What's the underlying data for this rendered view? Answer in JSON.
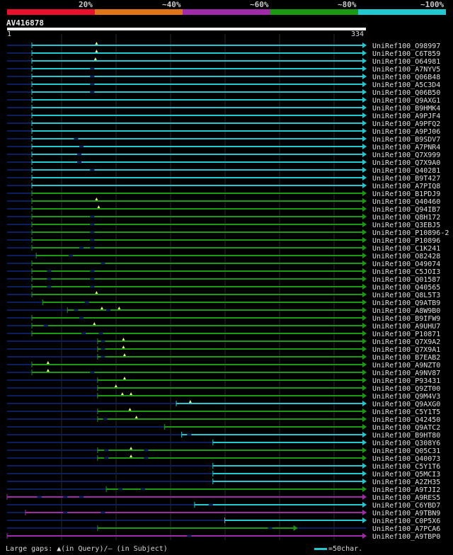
{
  "legend": {
    "colors": [
      "#e8102c",
      "#e07418",
      "#a02aa8",
      "#1a9a10",
      "#22c8d0"
    ],
    "labels": [
      "20%",
      "~40%",
      "~60%",
      "~80%",
      "~100%"
    ]
  },
  "query": {
    "name": "AV416878",
    "start": "1",
    "end": "334"
  },
  "footer": {
    "gaps_text": "Large gaps: ▲(in Query)/— (in Subject)",
    "scale_text": "=50char."
  },
  "colors": {
    "cyan": "#22c8d0",
    "green": "#1a9a10",
    "purple": "#a02aa8",
    "navy": "#0c1e5e",
    "grid": "#2a2a2a",
    "marker": "#f0f080"
  },
  "chart_data": {
    "type": "alignment",
    "query_length": 334,
    "hits": [
      {
        "name": "UniRef100_O98997",
        "start": 24,
        "end": 334,
        "color": "cyan",
        "q_gaps": [
          84
        ],
        "s_gaps": []
      },
      {
        "name": "UniRef100_C6T859",
        "start": 24,
        "end": 334,
        "color": "cyan",
        "q_gaps": [
          84
        ],
        "s_gaps": []
      },
      {
        "name": "UniRef100_O64981",
        "start": 24,
        "end": 334,
        "color": "cyan",
        "q_gaps": [
          83
        ],
        "s_gaps": []
      },
      {
        "name": "UniRef100_A7NYV5",
        "start": 24,
        "end": 334,
        "color": "cyan",
        "q_gaps": [],
        "s_gaps": [
          80
        ]
      },
      {
        "name": "UniRef100_Q06B48",
        "start": 24,
        "end": 334,
        "color": "cyan",
        "q_gaps": [],
        "s_gaps": [
          80
        ]
      },
      {
        "name": "UniRef100_A5C3D4",
        "start": 24,
        "end": 334,
        "color": "cyan",
        "q_gaps": [],
        "s_gaps": [
          80
        ]
      },
      {
        "name": "UniRef100_Q06B50",
        "start": 24,
        "end": 334,
        "color": "cyan",
        "q_gaps": [],
        "s_gaps": [
          80
        ]
      },
      {
        "name": "UniRef100_Q9AXG1",
        "start": 24,
        "end": 334,
        "color": "cyan",
        "q_gaps": [],
        "s_gaps": []
      },
      {
        "name": "UniRef100_B9HMK4",
        "start": 24,
        "end": 334,
        "color": "cyan",
        "q_gaps": [],
        "s_gaps": []
      },
      {
        "name": "UniRef100_A9PJF4",
        "start": 24,
        "end": 334,
        "color": "cyan",
        "q_gaps": [],
        "s_gaps": []
      },
      {
        "name": "UniRef100_A9PFQ2",
        "start": 24,
        "end": 334,
        "color": "cyan",
        "q_gaps": [],
        "s_gaps": []
      },
      {
        "name": "UniRef100_A9PJ06",
        "start": 24,
        "end": 334,
        "color": "cyan",
        "q_gaps": [],
        "s_gaps": []
      },
      {
        "name": "UniRef100_B9SDV7",
        "start": 24,
        "end": 334,
        "color": "cyan",
        "q_gaps": [],
        "s_gaps": [
          65
        ]
      },
      {
        "name": "UniRef100_A7PNR4",
        "start": 24,
        "end": 334,
        "color": "cyan",
        "q_gaps": [],
        "s_gaps": [
          70
        ]
      },
      {
        "name": "UniRef100_Q7X999",
        "start": 24,
        "end": 334,
        "color": "cyan",
        "q_gaps": [],
        "s_gaps": [
          68
        ]
      },
      {
        "name": "UniRef100_Q7X9A0",
        "start": 24,
        "end": 334,
        "color": "cyan",
        "q_gaps": [],
        "s_gaps": [
          68
        ]
      },
      {
        "name": "UniRef100_Q40281",
        "start": 24,
        "end": 334,
        "color": "cyan",
        "q_gaps": [],
        "s_gaps": [
          80
        ]
      },
      {
        "name": "UniRef100_B9T427",
        "start": 24,
        "end": 334,
        "color": "cyan",
        "q_gaps": [],
        "s_gaps": []
      },
      {
        "name": "UniRef100_A7PIQ8",
        "start": 24,
        "end": 334,
        "color": "cyan",
        "q_gaps": [],
        "s_gaps": []
      },
      {
        "name": "UniRef100_B1PDJ9",
        "start": 24,
        "end": 334,
        "color": "green",
        "q_gaps": [],
        "s_gaps": []
      },
      {
        "name": "UniRef100_Q40460",
        "start": 24,
        "end": 334,
        "color": "green",
        "q_gaps": [
          84
        ],
        "s_gaps": []
      },
      {
        "name": "UniRef100_Q94IB7",
        "start": 24,
        "end": 334,
        "color": "green",
        "q_gaps": [
          86
        ],
        "s_gaps": []
      },
      {
        "name": "UniRef100_Q8H172",
        "start": 24,
        "end": 334,
        "color": "green",
        "q_gaps": [],
        "s_gaps": [
          80
        ]
      },
      {
        "name": "UniRef100_Q3EBJ5",
        "start": 24,
        "end": 334,
        "color": "green",
        "q_gaps": [],
        "s_gaps": [
          80
        ]
      },
      {
        "name": "UniRef100_P10896-2",
        "start": 24,
        "end": 334,
        "color": "green",
        "q_gaps": [],
        "s_gaps": [
          80
        ]
      },
      {
        "name": "UniRef100_P10896",
        "start": 24,
        "end": 334,
        "color": "green",
        "q_gaps": [],
        "s_gaps": [
          80
        ]
      },
      {
        "name": "UniRef100_C1K241",
        "start": 24,
        "end": 334,
        "color": "green",
        "q_gaps": [],
        "s_gaps": [
          70,
          80
        ]
      },
      {
        "name": "UniRef100_O82428",
        "start": 28,
        "end": 334,
        "color": "green",
        "q_gaps": [],
        "s_gaps": [
          60
        ]
      },
      {
        "name": "UniRef100_O49074",
        "start": 24,
        "end": 334,
        "color": "green",
        "q_gaps": [],
        "s_gaps": [
          90
        ]
      },
      {
        "name": "UniRef100_C5JOI3",
        "start": 24,
        "end": 334,
        "color": "green",
        "q_gaps": [],
        "s_gaps": [
          40,
          80
        ]
      },
      {
        "name": "UniRef100_Q01587",
        "start": 24,
        "end": 334,
        "color": "green",
        "q_gaps": [],
        "s_gaps": [
          40,
          80
        ]
      },
      {
        "name": "UniRef100_Q40565",
        "start": 24,
        "end": 334,
        "color": "green",
        "q_gaps": [],
        "s_gaps": [
          40,
          80
        ]
      },
      {
        "name": "UniRef100_Q8L5T3",
        "start": 24,
        "end": 334,
        "color": "green",
        "q_gaps": [
          84
        ],
        "s_gaps": []
      },
      {
        "name": "UniRef100_Q9ATB9",
        "start": 34,
        "end": 334,
        "color": "green",
        "q_gaps": [],
        "s_gaps": [
          75
        ]
      },
      {
        "name": "UniRef100_A8W9B0",
        "start": 57,
        "end": 334,
        "color": "green",
        "q_gaps": [
          89,
          105
        ],
        "s_gaps": [
          65,
          95
        ]
      },
      {
        "name": "UniRef100_B9IFW9",
        "start": 24,
        "end": 334,
        "color": "green",
        "q_gaps": [],
        "s_gaps": [
          70
        ]
      },
      {
        "name": "UniRef100_A9UHU7",
        "start": 24,
        "end": 334,
        "color": "green",
        "q_gaps": [
          82
        ],
        "s_gaps": [
          37
        ]
      },
      {
        "name": "UniRef100_P10871",
        "start": 24,
        "end": 334,
        "color": "green",
        "q_gaps": [],
        "s_gaps": [
          72,
          88
        ]
      },
      {
        "name": "UniRef100_Q7X9A2",
        "start": 85,
        "end": 334,
        "color": "green",
        "q_gaps": [
          109
        ],
        "s_gaps": [
          90
        ]
      },
      {
        "name": "UniRef100_Q7X9A1",
        "start": 85,
        "end": 334,
        "color": "green",
        "q_gaps": [
          109
        ],
        "s_gaps": [
          90
        ]
      },
      {
        "name": "UniRef100_B7EAB2",
        "start": 85,
        "end": 334,
        "color": "green",
        "q_gaps": [
          110
        ],
        "s_gaps": [
          90
        ]
      },
      {
        "name": "UniRef100_A9NZT0",
        "start": 24,
        "end": 334,
        "color": "green",
        "q_gaps": [
          39
        ],
        "s_gaps": []
      },
      {
        "name": "UniRef100_A9NV87",
        "start": 24,
        "end": 334,
        "color": "green",
        "q_gaps": [
          39
        ],
        "s_gaps": [
          80
        ]
      },
      {
        "name": "UniRef100_P93431",
        "start": 85,
        "end": 334,
        "color": "green",
        "q_gaps": [
          110
        ],
        "s_gaps": []
      },
      {
        "name": "UniRef100_Q9ZT00",
        "start": 85,
        "end": 334,
        "color": "green",
        "q_gaps": [
          102
        ],
        "s_gaps": []
      },
      {
        "name": "UniRef100_Q9M4V3",
        "start": 85,
        "end": 334,
        "color": "green",
        "q_gaps": [
          108,
          116
        ],
        "s_gaps": []
      },
      {
        "name": "UniRef100_Q9AXG0",
        "start": 158,
        "end": 334,
        "color": "cyan",
        "q_gaps": [
          171
        ],
        "s_gaps": []
      },
      {
        "name": "UniRef100_C5Y1T5",
        "start": 85,
        "end": 334,
        "color": "green",
        "q_gaps": [
          115
        ],
        "s_gaps": []
      },
      {
        "name": "UniRef100_Q42450",
        "start": 85,
        "end": 334,
        "color": "green",
        "q_gaps": [
          121
        ],
        "s_gaps": [
          92
        ]
      },
      {
        "name": "UniRef100_Q9ATC2",
        "start": 147,
        "end": 334,
        "color": "green",
        "q_gaps": [],
        "s_gaps": []
      },
      {
        "name": "UniRef100_B9HT80",
        "start": 163,
        "end": 334,
        "color": "cyan",
        "q_gaps": [],
        "s_gaps": [
          170
        ]
      },
      {
        "name": "UniRef100_Q308Y6",
        "start": 192,
        "end": 334,
        "color": "cyan",
        "q_gaps": [],
        "s_gaps": []
      },
      {
        "name": "UniRef100_Q05C31",
        "start": 85,
        "end": 334,
        "color": "green",
        "q_gaps": [
          116
        ],
        "s_gaps": [
          93,
          130
        ]
      },
      {
        "name": "UniRef100_Q40073",
        "start": 85,
        "end": 334,
        "color": "green",
        "q_gaps": [
          116
        ],
        "s_gaps": [
          93,
          130
        ]
      },
      {
        "name": "UniRef100_C5Y1T6",
        "start": 192,
        "end": 334,
        "color": "cyan",
        "q_gaps": [],
        "s_gaps": []
      },
      {
        "name": "UniRef100_Q5MCI3",
        "start": 192,
        "end": 334,
        "color": "cyan",
        "q_gaps": [],
        "s_gaps": []
      },
      {
        "name": "UniRef100_A2ZH35",
        "start": 192,
        "end": 334,
        "color": "cyan",
        "q_gaps": [],
        "s_gaps": []
      },
      {
        "name": "UniRef100_A9TJI2",
        "start": 93,
        "end": 334,
        "color": "green",
        "q_gaps": [],
        "s_gaps": [
          106,
          127
        ]
      },
      {
        "name": "UniRef100_A9RES5",
        "start": 1,
        "end": 334,
        "color": "purple",
        "q_gaps": [],
        "s_gaps": [
          31,
          55,
          70
        ]
      },
      {
        "name": "UniRef100_C6YBD7",
        "start": 175,
        "end": 334,
        "color": "cyan",
        "q_gaps": [],
        "s_gaps": [
          190
        ]
      },
      {
        "name": "UniRef100_A9TBN9",
        "start": 18,
        "end": 334,
        "color": "purple",
        "q_gaps": [],
        "s_gaps": [
          55,
          90
        ]
      },
      {
        "name": "UniRef100_C0P5X6",
        "start": 203,
        "end": 334,
        "color": "cyan",
        "q_gaps": [],
        "s_gaps": []
      },
      {
        "name": "UniRef100_A7PCA6",
        "start": 85,
        "end": 270,
        "color": "green",
        "q_gaps": [],
        "s_gaps": [
          245
        ]
      },
      {
        "name": "UniRef100_A9TBP0",
        "start": 1,
        "end": 334,
        "color": "purple",
        "q_gaps": [],
        "s_gaps": [
          170
        ]
      }
    ]
  }
}
